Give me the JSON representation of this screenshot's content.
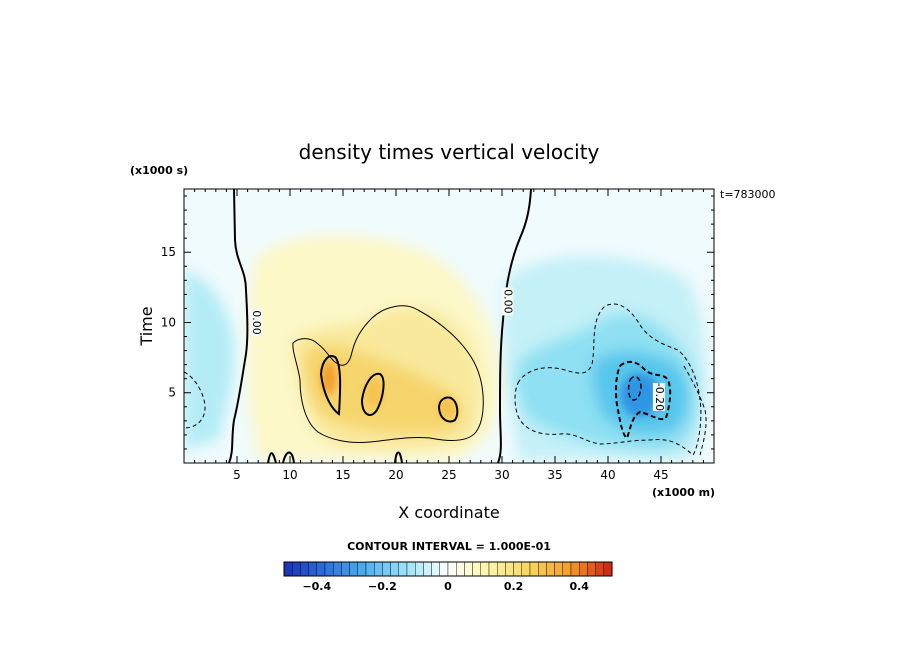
{
  "chart_data": {
    "type": "heatmap",
    "title": "density times vertical velocity",
    "xlabel": "X coordinate",
    "ylabel": "Time",
    "x_scale_label": "(x1000 m)",
    "y_scale_label": "(x1000 s)",
    "time_stamp": "t=783000",
    "xlim": [
      0,
      50
    ],
    "ylim": [
      0,
      19.5
    ],
    "x_ticks": [
      5,
      10,
      15,
      20,
      25,
      30,
      35,
      40,
      45
    ],
    "x_tick_labels": [
      "5",
      "10",
      "15",
      "20",
      "25",
      "30",
      "35",
      "40",
      "45"
    ],
    "y_ticks": [
      5,
      10,
      15
    ],
    "y_tick_labels": [
      "5",
      "10",
      "15"
    ],
    "contour_interval_label": "CONTOUR INTERVAL = 1.000E-01",
    "contour_labels": [
      {
        "text": "0.00",
        "x": 6.8,
        "y": 10
      },
      {
        "text": "0.00",
        "x": 30.5,
        "y": 11.5
      },
      {
        "text": "-0.20",
        "x": 44.8,
        "y": 4.7
      }
    ],
    "colorbar": {
      "min": -0.5,
      "max": 0.5,
      "ticks": [
        -0.4,
        -0.2,
        0,
        0.2,
        0.4
      ],
      "tick_labels": [
        "−0.4",
        "−0.2",
        "0",
        "0.2",
        "0.4"
      ],
      "colors": [
        "#1a2fb5",
        "#2e6fdc",
        "#4fb0ee",
        "#9ee4f8",
        "#ffffff",
        "#fbf6a8",
        "#f7d560",
        "#f39a2c",
        "#cc1f10"
      ]
    },
    "features": [
      {
        "kind": "positive-max",
        "x": 14,
        "y": 6.5,
        "value": 0.3
      },
      {
        "kind": "positive-max",
        "x": 18.2,
        "y": 5,
        "value": 0.2
      },
      {
        "kind": "positive-max",
        "x": 24.8,
        "y": 4,
        "value": 0.2
      },
      {
        "kind": "negative-min",
        "x": 43.5,
        "y": 5,
        "value": -0.3
      },
      {
        "kind": "negative-weak",
        "x": 2,
        "y": 8.5,
        "value": -0.05
      }
    ]
  }
}
